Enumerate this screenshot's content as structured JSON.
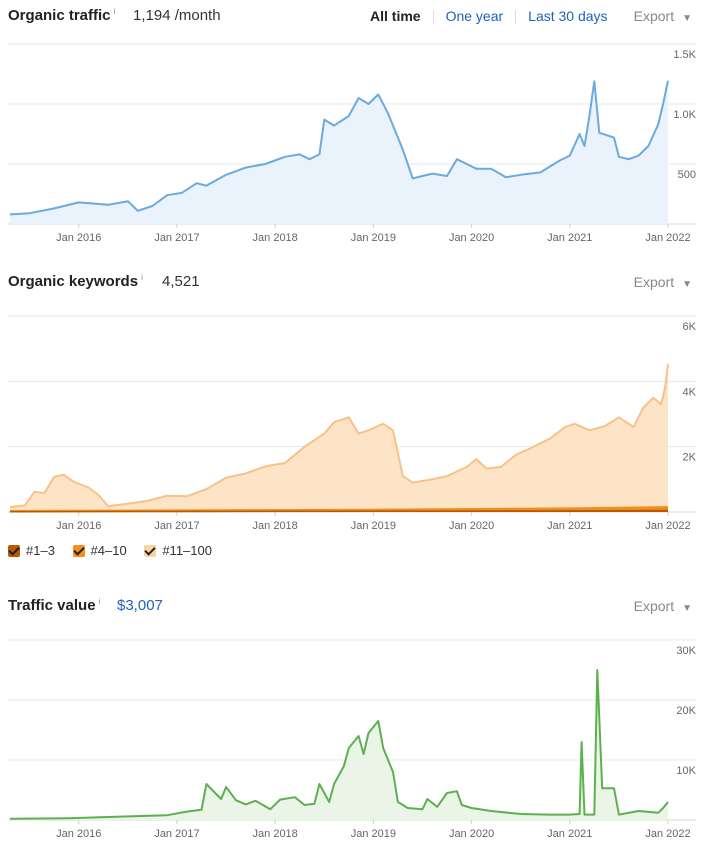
{
  "traffic": {
    "title": "Organic traffic",
    "info": "i",
    "metric": "1,194 /month",
    "ranges": [
      "All time",
      "One year",
      "Last 30 days"
    ],
    "export": "Export",
    "export_caret": "▼"
  },
  "keywords": {
    "title": "Organic keywords",
    "info": "i",
    "metric": "4,521",
    "export": "Export",
    "export_caret": "▼",
    "legend": [
      "#1–3",
      "#4–10",
      "#11–100"
    ]
  },
  "value": {
    "title": "Traffic value",
    "info": "i",
    "metric": "$3,007",
    "export": "Export",
    "export_caret": "▼"
  },
  "colors": {
    "traffic_line": "#6aaae0",
    "traffic_fill": "#eaf2fb",
    "kw_line": "#f7c188",
    "kw_fill": "#fde4c7",
    "kw_top3": "#b85a00",
    "kw_top10": "#f28e1c",
    "kw_top100": "#fbd3a3",
    "value_line": "#5cb04f",
    "value_fill": "#eaf5e7",
    "grid": "#e8e8e8"
  },
  "chart_data": [
    {
      "type": "area",
      "x_ticks": [
        "Jan 2016",
        "Jan 2017",
        "Jan 2018",
        "Jan 2019",
        "Jan 2020",
        "Jan 2021",
        "Jan 2022"
      ],
      "y_ticks": [
        500,
        1000,
        1500
      ],
      "y_tick_labels": [
        "500",
        "1.0K",
        "1.5K"
      ],
      "ylim": [
        0,
        1500
      ],
      "xlim": [
        2015.3,
        2022.0
      ],
      "series": [
        {
          "points": [
            [
              2015.3,
              80
            ],
            [
              2015.5,
              90
            ],
            [
              2015.75,
              130
            ],
            [
              2016.0,
              180
            ],
            [
              2016.3,
              160
            ],
            [
              2016.5,
              190
            ],
            [
              2016.6,
              110
            ],
            [
              2016.75,
              150
            ],
            [
              2016.9,
              240
            ],
            [
              2017.05,
              260
            ],
            [
              2017.2,
              340
            ],
            [
              2017.3,
              320
            ],
            [
              2017.5,
              410
            ],
            [
              2017.7,
              470
            ],
            [
              2017.9,
              500
            ],
            [
              2018.1,
              560
            ],
            [
              2018.25,
              580
            ],
            [
              2018.35,
              540
            ],
            [
              2018.45,
              580
            ],
            [
              2018.5,
              870
            ],
            [
              2018.6,
              820
            ],
            [
              2018.75,
              900
            ],
            [
              2018.85,
              1050
            ],
            [
              2018.95,
              1000
            ],
            [
              2019.05,
              1080
            ],
            [
              2019.15,
              920
            ],
            [
              2019.3,
              620
            ],
            [
              2019.4,
              380
            ],
            [
              2019.6,
              420
            ],
            [
              2019.75,
              400
            ],
            [
              2019.85,
              540
            ],
            [
              2019.95,
              500
            ],
            [
              2020.05,
              460
            ],
            [
              2020.2,
              460
            ],
            [
              2020.35,
              390
            ],
            [
              2020.5,
              410
            ],
            [
              2020.7,
              430
            ],
            [
              2020.9,
              530
            ],
            [
              2021.0,
              570
            ],
            [
              2021.1,
              750
            ],
            [
              2021.15,
              650
            ],
            [
              2021.2,
              900
            ],
            [
              2021.25,
              1190
            ],
            [
              2021.3,
              760
            ],
            [
              2021.45,
              720
            ],
            [
              2021.5,
              560
            ],
            [
              2021.6,
              540
            ],
            [
              2021.7,
              570
            ],
            [
              2021.8,
              650
            ],
            [
              2021.9,
              830
            ],
            [
              2021.95,
              1000
            ],
            [
              2022.0,
              1194
            ]
          ]
        }
      ]
    },
    {
      "type": "area",
      "x_ticks": [
        "Jan 2016",
        "Jan 2017",
        "Jan 2018",
        "Jan 2019",
        "Jan 2020",
        "Jan 2021",
        "Jan 2022"
      ],
      "y_ticks": [
        2000,
        4000,
        6000
      ],
      "y_tick_labels": [
        "2K",
        "4K",
        "6K"
      ],
      "ylim": [
        0,
        6000
      ],
      "xlim": [
        2015.3,
        2022.0
      ],
      "series": [
        {
          "name": "#11–100",
          "points": [
            [
              2015.3,
              150
            ],
            [
              2015.45,
              200
            ],
            [
              2015.55,
              620
            ],
            [
              2015.65,
              580
            ],
            [
              2015.75,
              1080
            ],
            [
              2015.85,
              1140
            ],
            [
              2015.95,
              920
            ],
            [
              2016.1,
              750
            ],
            [
              2016.2,
              520
            ],
            [
              2016.3,
              180
            ],
            [
              2016.5,
              250
            ],
            [
              2016.7,
              340
            ],
            [
              2016.9,
              500
            ],
            [
              2017.1,
              480
            ],
            [
              2017.3,
              700
            ],
            [
              2017.5,
              1050
            ],
            [
              2017.7,
              1180
            ],
            [
              2017.9,
              1400
            ],
            [
              2018.1,
              1500
            ],
            [
              2018.3,
              2000
            ],
            [
              2018.5,
              2400
            ],
            [
              2018.6,
              2750
            ],
            [
              2018.75,
              2900
            ],
            [
              2018.85,
              2400
            ],
            [
              2018.95,
              2500
            ],
            [
              2019.1,
              2700
            ],
            [
              2019.2,
              2500
            ],
            [
              2019.3,
              1100
            ],
            [
              2019.4,
              900
            ],
            [
              2019.6,
              1000
            ],
            [
              2019.75,
              1100
            ],
            [
              2019.95,
              1380
            ],
            [
              2020.05,
              1620
            ],
            [
              2020.15,
              1330
            ],
            [
              2020.3,
              1380
            ],
            [
              2020.45,
              1750
            ],
            [
              2020.6,
              1950
            ],
            [
              2020.8,
              2250
            ],
            [
              2020.95,
              2600
            ],
            [
              2021.05,
              2700
            ],
            [
              2021.2,
              2500
            ],
            [
              2021.35,
              2620
            ],
            [
              2021.5,
              2900
            ],
            [
              2021.65,
              2600
            ],
            [
              2021.75,
              3200
            ],
            [
              2021.85,
              3500
            ],
            [
              2021.93,
              3300
            ],
            [
              2021.97,
              3800
            ],
            [
              2022.0,
              4521
            ]
          ]
        },
        {
          "name": "#4–10",
          "points": [
            [
              2015.3,
              30
            ],
            [
              2017.0,
              50
            ],
            [
              2019.0,
              70
            ],
            [
              2021.0,
              110
            ],
            [
              2022.0,
              150
            ]
          ]
        },
        {
          "name": "#1–3",
          "points": [
            [
              2015.3,
              10
            ],
            [
              2017.0,
              15
            ],
            [
              2019.0,
              25
            ],
            [
              2021.0,
              35
            ],
            [
              2022.0,
              45
            ]
          ]
        }
      ]
    },
    {
      "type": "area",
      "x_ticks": [
        "Jan 2016",
        "Jan 2017",
        "Jan 2018",
        "Jan 2019",
        "Jan 2020",
        "Jan 2021",
        "Jan 2022"
      ],
      "y_ticks": [
        10000,
        20000,
        30000
      ],
      "y_tick_labels": [
        "10K",
        "20K",
        "30K"
      ],
      "ylim": [
        0,
        30000
      ],
      "xlim": [
        2015.3,
        2022.0
      ],
      "series": [
        {
          "points": [
            [
              2015.3,
              200
            ],
            [
              2015.9,
              300
            ],
            [
              2016.5,
              600
            ],
            [
              2016.9,
              800
            ],
            [
              2017.1,
              1400
            ],
            [
              2017.25,
              1700
            ],
            [
              2017.3,
              6000
            ],
            [
              2017.45,
              3500
            ],
            [
              2017.5,
              5500
            ],
            [
              2017.6,
              3300
            ],
            [
              2017.7,
              2600
            ],
            [
              2017.8,
              3200
            ],
            [
              2017.95,
              1800
            ],
            [
              2018.05,
              3400
            ],
            [
              2018.2,
              3800
            ],
            [
              2018.3,
              2500
            ],
            [
              2018.4,
              2700
            ],
            [
              2018.45,
              6000
            ],
            [
              2018.55,
              3000
            ],
            [
              2018.6,
              6000
            ],
            [
              2018.7,
              9000
            ],
            [
              2018.75,
              12000
            ],
            [
              2018.85,
              14000
            ],
            [
              2018.9,
              11000
            ],
            [
              2018.95,
              14500
            ],
            [
              2019.05,
              16500
            ],
            [
              2019.1,
              12000
            ],
            [
              2019.2,
              8000
            ],
            [
              2019.25,
              3000
            ],
            [
              2019.35,
              2000
            ],
            [
              2019.5,
              1800
            ],
            [
              2019.55,
              3500
            ],
            [
              2019.65,
              2200
            ],
            [
              2019.75,
              4500
            ],
            [
              2019.85,
              4800
            ],
            [
              2019.9,
              2500
            ],
            [
              2020.0,
              2000
            ],
            [
              2020.2,
              1500
            ],
            [
              2020.5,
              1000
            ],
            [
              2020.8,
              900
            ],
            [
              2021.0,
              900
            ],
            [
              2021.1,
              1000
            ],
            [
              2021.12,
              13000
            ],
            [
              2021.15,
              900
            ],
            [
              2021.25,
              900
            ],
            [
              2021.28,
              25000
            ],
            [
              2021.33,
              5300
            ],
            [
              2021.45,
              5300
            ],
            [
              2021.5,
              900
            ],
            [
              2021.7,
              1500
            ],
            [
              2021.9,
              1200
            ],
            [
              2021.95,
              2000
            ],
            [
              2022.0,
              3007
            ]
          ]
        }
      ]
    }
  ]
}
